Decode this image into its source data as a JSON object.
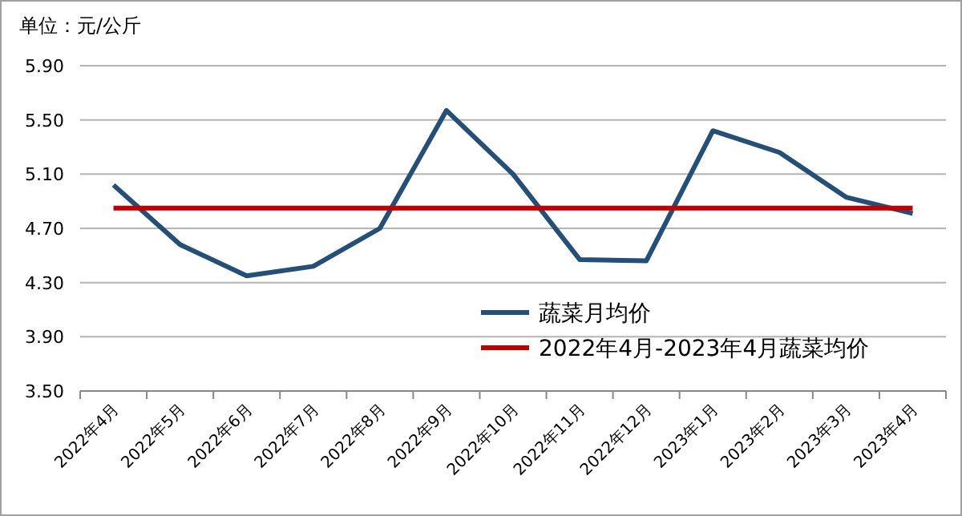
{
  "chart_data": {
    "type": "line",
    "ylabel": "单位：元/公斤",
    "categories": [
      "2022年4月",
      "2022年5月",
      "2022年6月",
      "2022年7月",
      "2022年8月",
      "2022年9月",
      "2022年10月",
      "2022年11月",
      "2022年12月",
      "2023年1月",
      "2023年2月",
      "2023年3月",
      "2023年4月"
    ],
    "series": [
      {
        "name": "蔬菜月均价",
        "color": "#264f78",
        "values": [
          5.02,
          4.58,
          4.35,
          4.42,
          4.7,
          5.57,
          5.1,
          4.47,
          4.46,
          5.42,
          5.26,
          4.93,
          4.81
        ]
      },
      {
        "name": "2022年4月-2023年4月蔬菜均价",
        "color": "#c00000",
        "values": [
          4.85,
          4.85,
          4.85,
          4.85,
          4.85,
          4.85,
          4.85,
          4.85,
          4.85,
          4.85,
          4.85,
          4.85,
          4.85
        ]
      }
    ],
    "ylim": [
      3.5,
      5.9
    ],
    "yticks": [
      {
        "value": 3.5,
        "label": "3.50"
      },
      {
        "value": 3.9,
        "label": "3.90"
      },
      {
        "value": 4.3,
        "label": "4.30"
      },
      {
        "value": 4.7,
        "label": "4.70"
      },
      {
        "value": 5.1,
        "label": "5.10"
      },
      {
        "value": 5.5,
        "label": "5.50"
      },
      {
        "value": 5.9,
        "label": "5.90"
      }
    ],
    "grid": "y",
    "legend": "bottom right",
    "marker": "none",
    "line_style": "solid"
  }
}
